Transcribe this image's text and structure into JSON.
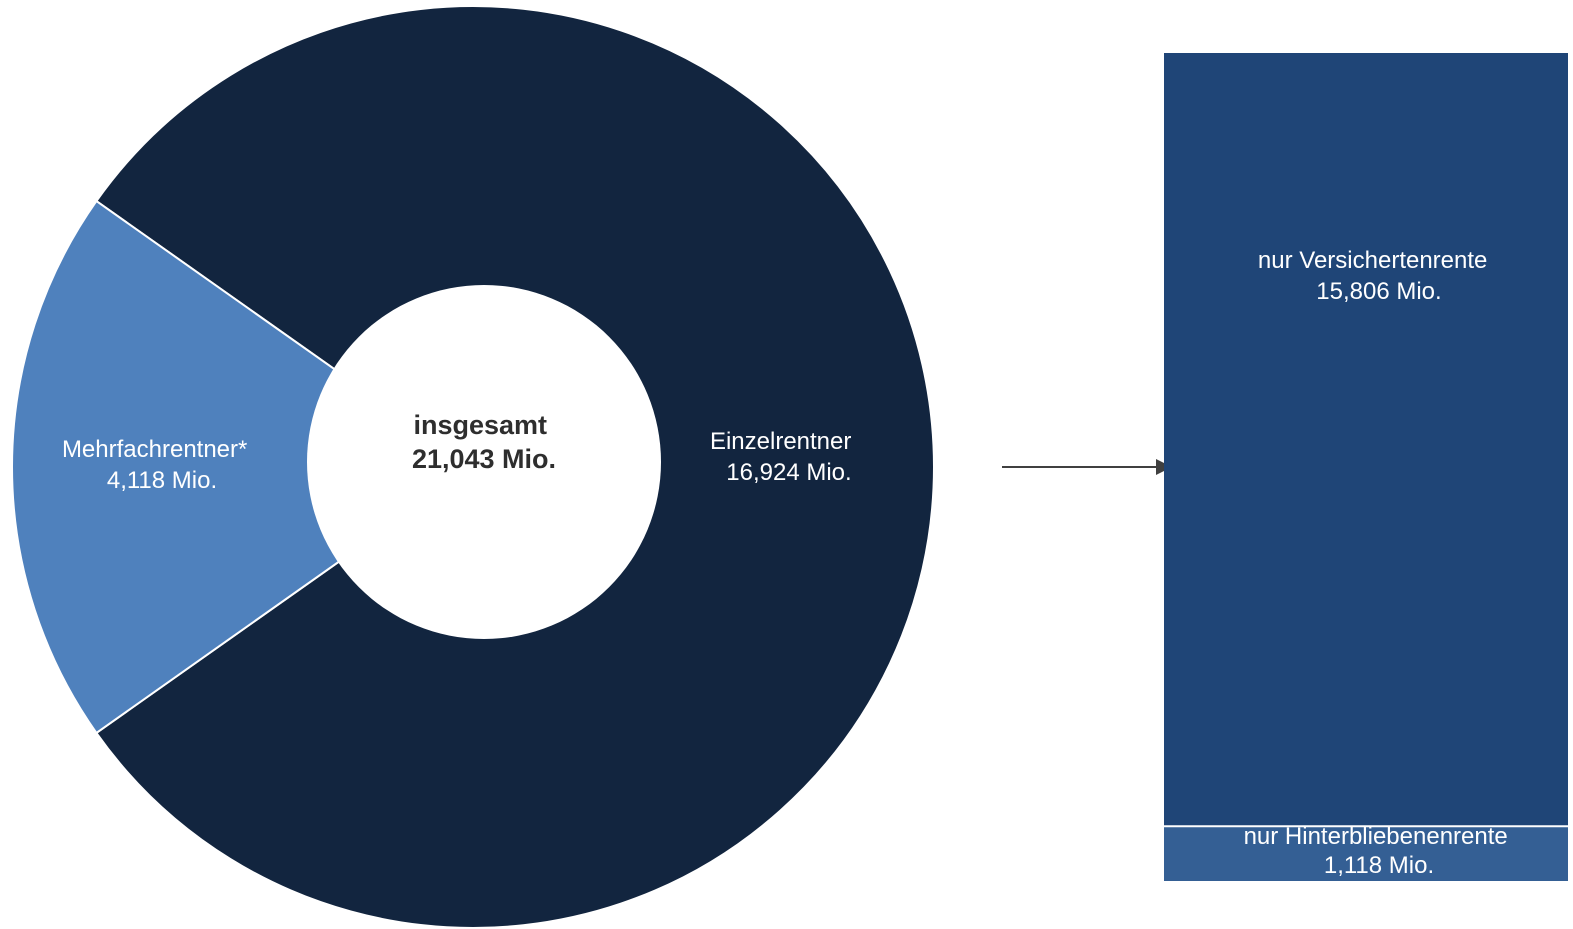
{
  "chart_data": [
    {
      "type": "pie",
      "variant": "donut",
      "center_label": {
        "line1": "insgesamt",
        "line2": "21,043 Mio."
      },
      "total": 21.043,
      "unit": "Mio.",
      "slices": [
        {
          "name": "Einzelrentner",
          "value": 16.924,
          "label": "16,924 Mio.",
          "color": "#12253f"
        },
        {
          "name": "Mehrfachrentner*",
          "value": 4.118,
          "label": "4,118 Mio.",
          "color": "#4f81bd"
        }
      ]
    },
    {
      "type": "bar",
      "variant": "stacked-100",
      "represents": "Einzelrentner",
      "total": 16.924,
      "unit": "Mio.",
      "segments": [
        {
          "name": "nur Versichertenrente",
          "value": 15.806,
          "label": "15,806 Mio.",
          "color": "#1f4577"
        },
        {
          "name": "nur Hinterbliebenenrente",
          "value": 1.118,
          "label": "1,118 Mio.",
          "color": "#345f94"
        }
      ]
    }
  ],
  "colors": {
    "arrow": "#404040",
    "separator": "#ffffff",
    "background": "#ffffff"
  }
}
